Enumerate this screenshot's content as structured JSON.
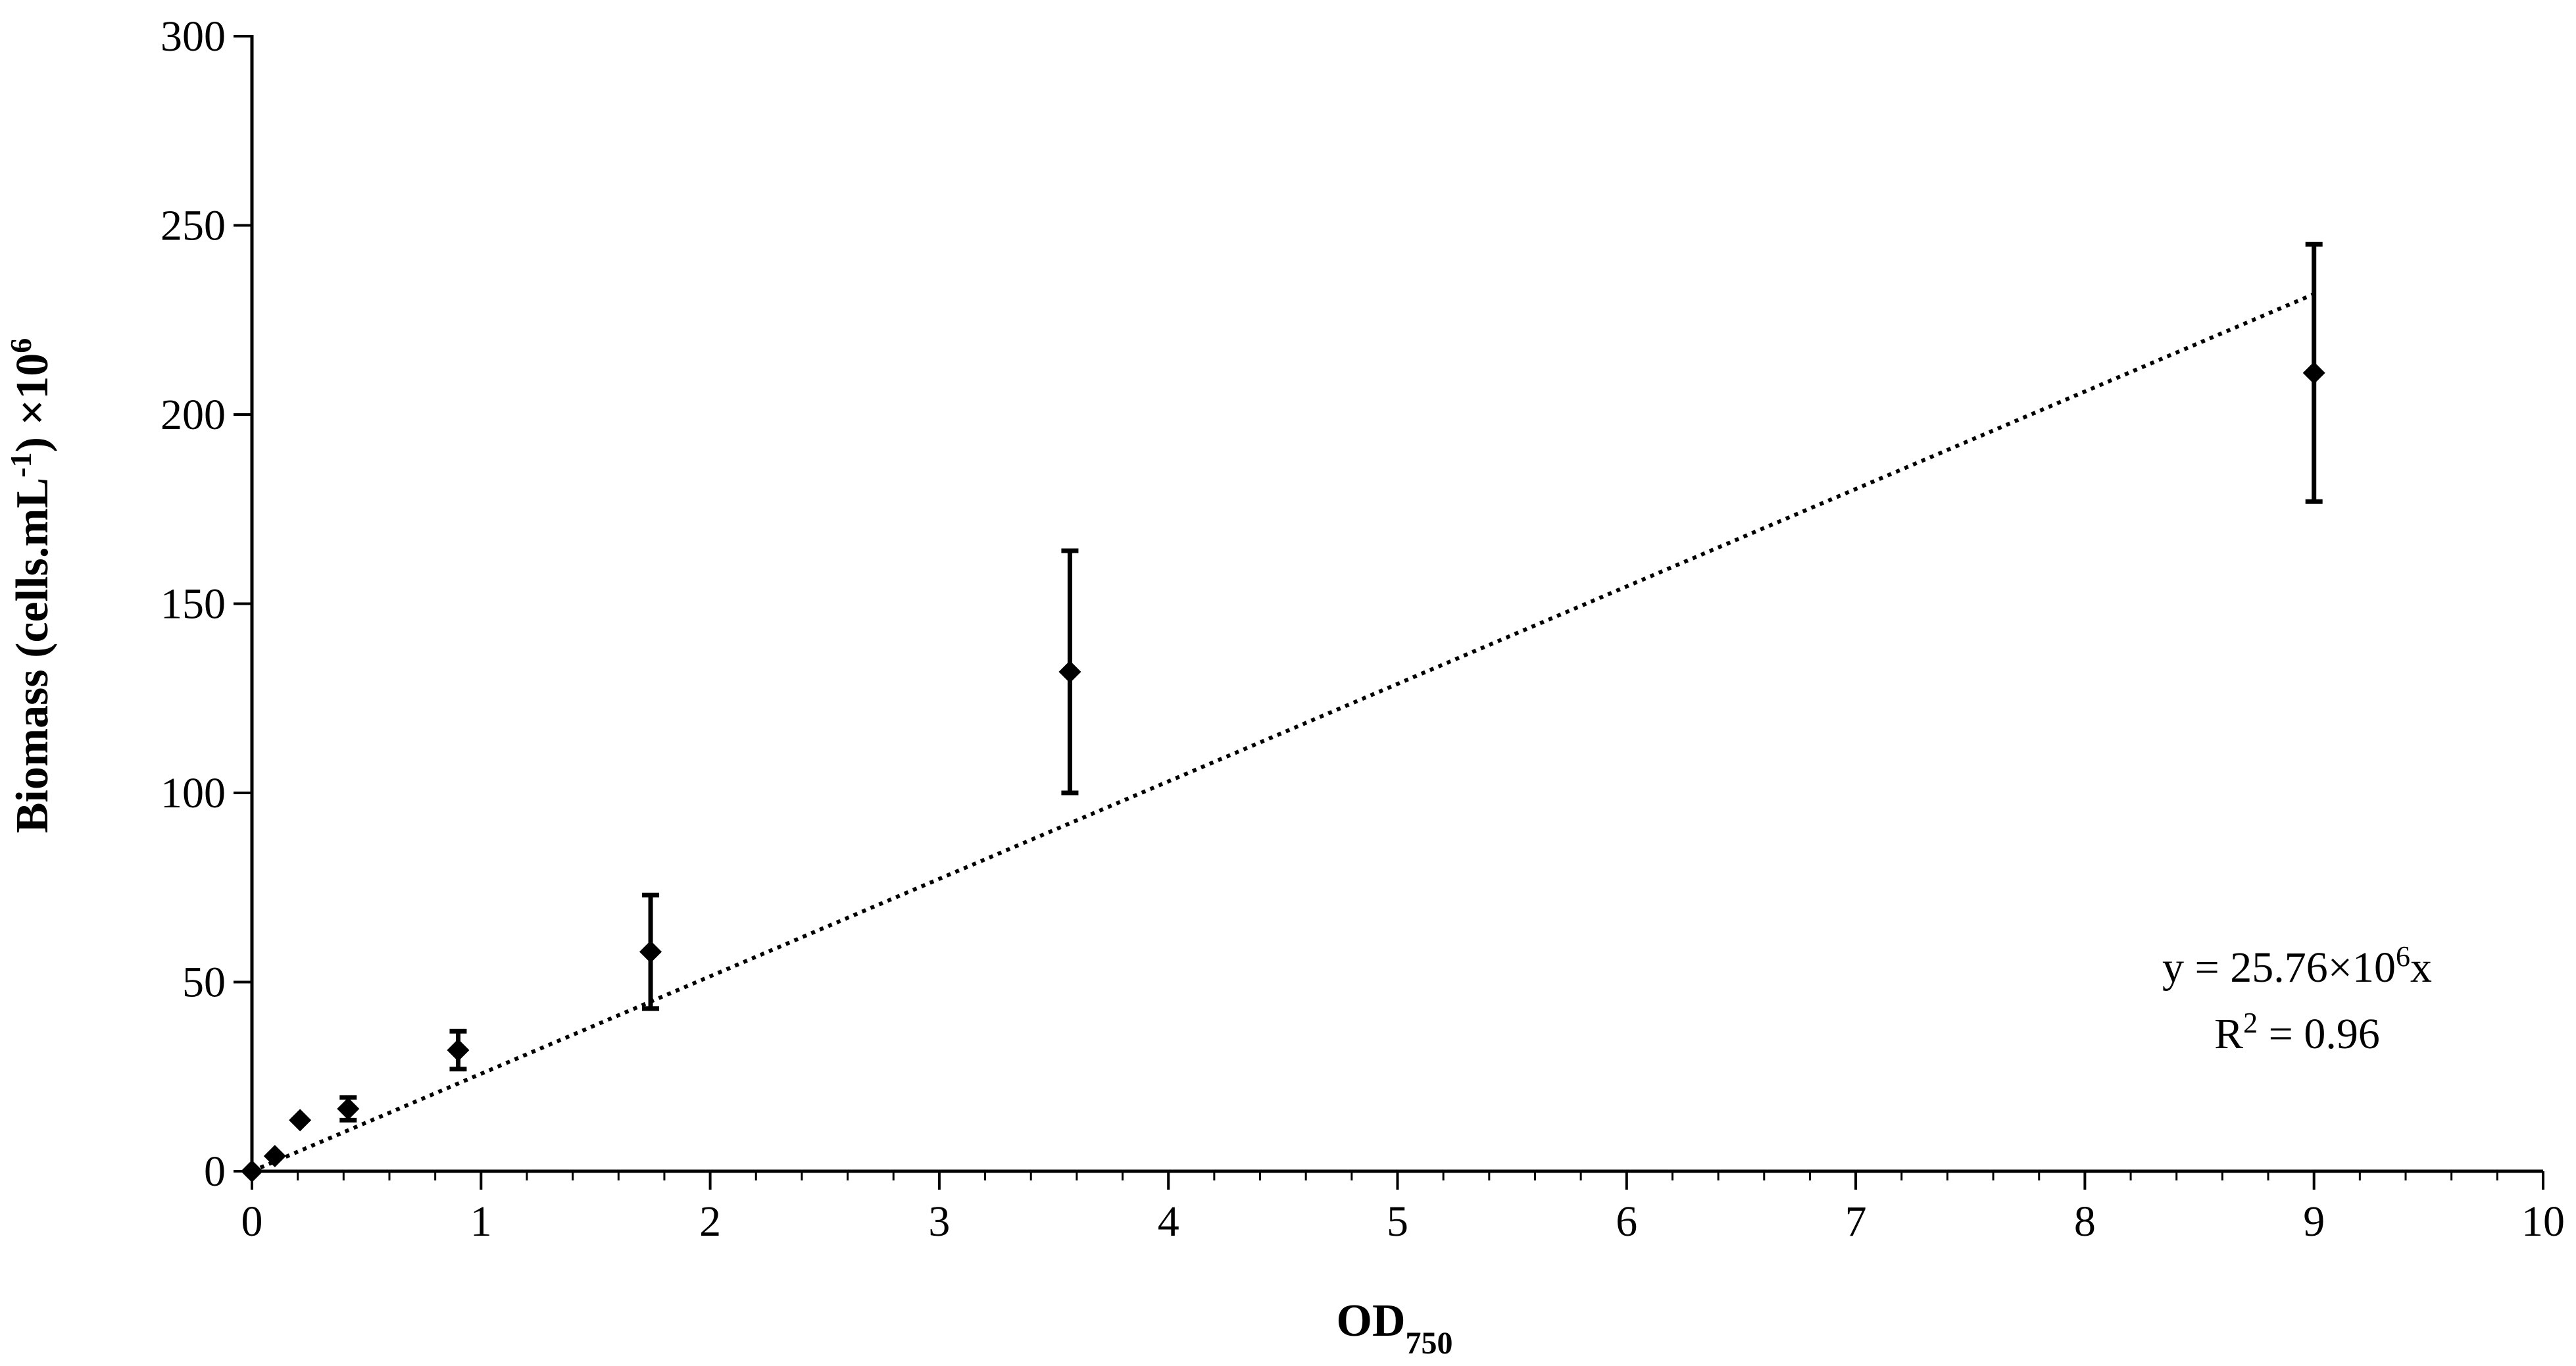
{
  "chart_data": {
    "type": "scatter",
    "title": "",
    "xlabel": "OD",
    "xlabel_subscript": "750",
    "ylabel_parts": [
      "Biomass (cells.mL",
      "-1",
      ") ×10",
      "6"
    ],
    "xlim": [
      0,
      10
    ],
    "ylim": [
      0,
      300
    ],
    "x_ticks": [
      0,
      1,
      2,
      3,
      4,
      5,
      6,
      7,
      8,
      9,
      10
    ],
    "y_ticks": [
      0,
      50,
      100,
      150,
      200,
      250,
      300
    ],
    "x_minor_step": 0.2,
    "grid": false,
    "series": [
      {
        "name": "Biomass",
        "marker": "diamond",
        "x": [
          0,
          0.1,
          0.21,
          0.42,
          0.9,
          1.74,
          3.57,
          9.0
        ],
        "y": [
          0,
          4,
          13.5,
          16.5,
          32,
          58,
          132,
          211
        ],
        "err": [
          0,
          0,
          0,
          3,
          5,
          15,
          32,
          34
        ]
      }
    ],
    "trendline": {
      "style": "dotted",
      "slope": 25.76,
      "x_range": [
        0,
        9
      ]
    },
    "annotation": {
      "eq_prefix": "y = 25.76×10",
      "eq_sup": "6",
      "eq_suffix": "x",
      "r2_prefix": "R",
      "r2_sup": "2",
      "r2_suffix": " = 0.96"
    }
  }
}
